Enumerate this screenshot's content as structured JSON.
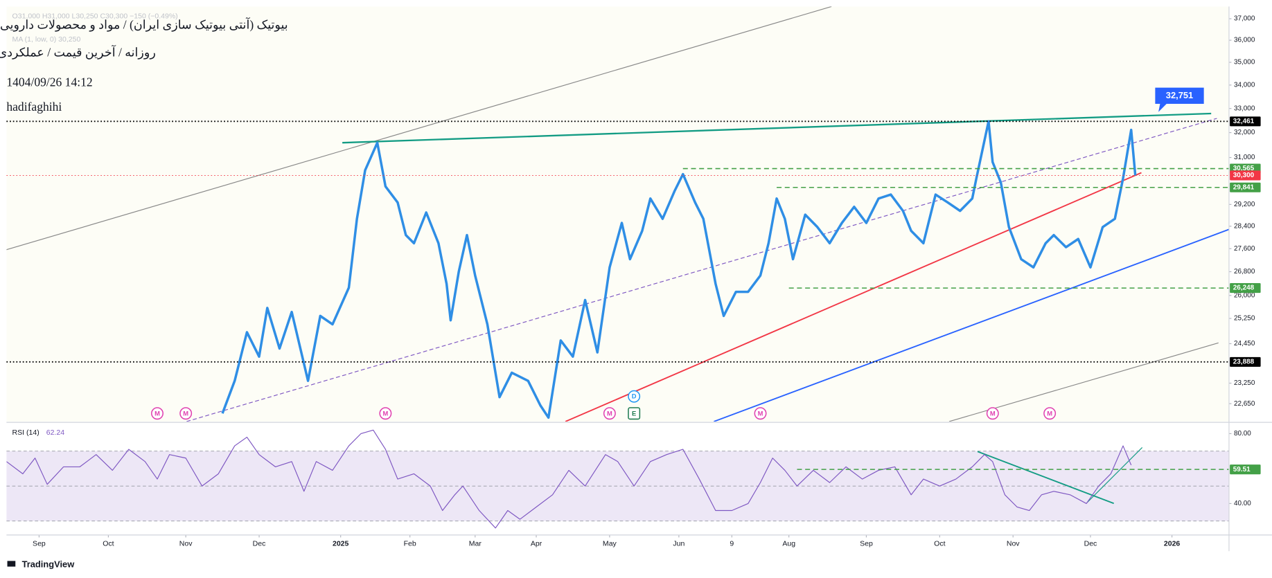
{
  "chart_data": [
    {
      "type": "line",
      "title": "بیوتیک (آنتی بیوتیک سازی ایران) / مواد و محصولات دارویی",
      "subtitle": "روزانه / آخرین قیمت / عملکردی",
      "date": "1404/09/26 14:12",
      "author": "hadifaghihi",
      "ohlc": "O31,000 H31,000 L30,250 C30,300 −150 (−0.49%)",
      "ma": "MA (1, low, 0) 30,250",
      "log": true,
      "xlim": [
        0,
        300
      ],
      "ylim": [
        22140,
        37580
      ],
      "yticks": [
        {
          "value": 37000,
          "label": "37,000"
        },
        {
          "value": 36000,
          "label": "36,000"
        },
        {
          "value": 35000,
          "label": "35,000"
        },
        {
          "value": 34000,
          "label": "34,000"
        },
        {
          "value": 33000,
          "label": "33,000"
        },
        {
          "value": 32000,
          "label": "32,000"
        },
        {
          "value": 31000,
          "label": "31,000"
        },
        {
          "value": 29200,
          "label": "29,200"
        },
        {
          "value": 28400,
          "label": "28,400"
        },
        {
          "value": 27600,
          "label": "27,600"
        },
        {
          "value": 26800,
          "label": "26,800"
        },
        {
          "value": 26000,
          "label": "26,000"
        },
        {
          "value": 25250,
          "label": "25,250"
        },
        {
          "value": 24450,
          "label": "24,450"
        },
        {
          "value": 23250,
          "label": "23,250"
        },
        {
          "value": 22650,
          "label": "22,650"
        }
      ],
      "series": [
        {
          "color": "#2f8ee5",
          "x": [
            53,
            56,
            59,
            62,
            64,
            67,
            70,
            74,
            77,
            80,
            84,
            86,
            88,
            91,
            93,
            96,
            98,
            100,
            103,
            106,
            108,
            109,
            111,
            113,
            115,
            118,
            121,
            124,
            128,
            131,
            133,
            136,
            139,
            142,
            145,
            148,
            151,
            153,
            156,
            158,
            161,
            164,
            166,
            169,
            171,
            174,
            176,
            179,
            182,
            185,
            187,
            189,
            191,
            193,
            196,
            199,
            202,
            205,
            208,
            211,
            214,
            217,
            220,
            222,
            225,
            228,
            231,
            234,
            237,
            238,
            241,
            242,
            244,
            246,
            249,
            252,
            255,
            257,
            260,
            263,
            266,
            269,
            272,
            274,
            276,
            277
          ],
          "values": [
            22370,
            23320,
            24810,
            24050,
            25590,
            24300,
            25460,
            23320,
            25330,
            25060,
            26260,
            28670,
            30500,
            31590,
            29880,
            29270,
            28080,
            27790,
            28900,
            27790,
            26390,
            25190,
            26810,
            28080,
            26670,
            25060,
            22840,
            23560,
            23320,
            22600,
            22250,
            24550,
            24050,
            25850,
            24180,
            26950,
            28520,
            27230,
            28230,
            29420,
            28670,
            29720,
            30350,
            29270,
            28670,
            26390,
            25330,
            26120,
            26120,
            26670,
            27790,
            29420,
            28670,
            27230,
            28820,
            28370,
            27790,
            28520,
            29110,
            28520,
            29420,
            29570,
            28960,
            28230,
            27790,
            29570,
            29270,
            28960,
            29420,
            30190,
            32460,
            30820,
            30030,
            28370,
            27230,
            26950,
            27790,
            28080,
            27650,
            27940,
            26950,
            28370,
            28670,
            30190,
            32110,
            30300
          ]
        }
      ],
      "levels": [
        {
          "value": 32461,
          "label": "32,461",
          "color": "#000000"
        },
        {
          "value": 30565,
          "label": "30,565",
          "color": "#43a047",
          "x0": 166
        },
        {
          "value": 30300,
          "label": "30,300",
          "color": "#f23645"
        },
        {
          "value": 29841,
          "label": "29,841",
          "color": "#43a047",
          "x0": 189
        },
        {
          "value": 26248,
          "label": "26,248",
          "color": "#43a047",
          "x0": 192
        },
        {
          "value": 23888,
          "label": "23,888",
          "color": "#000000"
        }
      ],
      "callout": {
        "value": 32751,
        "label": "32,751"
      },
      "events": [
        {
          "x": 37,
          "label": "M",
          "color": "#e040b0"
        },
        {
          "x": 44,
          "label": "M",
          "color": "#e040b0"
        },
        {
          "x": 93,
          "label": "M",
          "color": "#e040b0"
        },
        {
          "x": 148,
          "label": "M",
          "color": "#e040b0"
        },
        {
          "x": 154,
          "label": "E",
          "color": "#1e7b4f"
        },
        {
          "x": 154,
          "label": "D",
          "color": "#2196f3"
        },
        {
          "x": 185,
          "label": "M",
          "color": "#e040b0"
        },
        {
          "x": 242,
          "label": "M",
          "color": "#e040b0"
        },
        {
          "x": 256,
          "label": "M",
          "color": "#e040b0"
        }
      ]
    },
    {
      "type": "line",
      "title": "RSI (14)",
      "last": 62.24,
      "xlim": [
        0,
        300
      ],
      "ylim": [
        22,
        86
      ],
      "yticks": [
        {
          "value": 80,
          "label": "80.00"
        },
        {
          "value": 40,
          "label": "40.00"
        }
      ],
      "hlines": [
        70,
        50,
        30
      ],
      "band": [
        30,
        70
      ],
      "band_color": "#ede7f6",
      "series": [
        {
          "color": "#7e57c2",
          "x": [
            0,
            4,
            7,
            10,
            14,
            18,
            22,
            26,
            30,
            34,
            37,
            40,
            44,
            48,
            52,
            56,
            59,
            62,
            66,
            70,
            73,
            76,
            80,
            84,
            87,
            90,
            93,
            96,
            100,
            104,
            107,
            110,
            112,
            116,
            120,
            123,
            126,
            130,
            134,
            138,
            142,
            147,
            150,
            154,
            158,
            162,
            166,
            170,
            174,
            178,
            182,
            185,
            188,
            191,
            194,
            198,
            202,
            206,
            210,
            214,
            218,
            222,
            225,
            229,
            233,
            237,
            240,
            242,
            245,
            248,
            251,
            254,
            257,
            261,
            265,
            268,
            271,
            274,
            276
          ],
          "values": [
            64,
            57,
            66,
            51,
            61,
            61,
            68,
            59,
            71,
            64,
            54,
            68,
            66,
            50,
            57,
            73,
            78,
            68,
            61,
            64,
            47,
            64,
            59,
            73,
            80,
            82,
            71,
            54,
            57,
            50,
            36,
            45,
            50,
            36,
            26,
            36,
            31,
            38,
            45,
            59,
            50,
            68,
            64,
            50,
            64,
            68,
            71,
            54,
            36,
            36,
            40,
            52,
            66,
            59,
            50,
            59,
            52,
            61,
            54,
            59,
            61,
            45,
            54,
            50,
            54,
            61,
            68,
            64,
            45,
            38,
            36,
            45,
            47,
            45,
            40,
            50,
            57,
            73,
            62
          ]
        }
      ],
      "levels": [
        {
          "value": 59.51,
          "label": "59.51",
          "color": "#43a047",
          "x0": 194
        }
      ],
      "xticks": [
        {
          "value": 8,
          "label": "Sep"
        },
        {
          "value": 25,
          "label": "Oct"
        },
        {
          "value": 44,
          "label": "Nov"
        },
        {
          "value": 62,
          "label": "Dec"
        },
        {
          "value": 82,
          "label": "2025"
        },
        {
          "value": 99,
          "label": "Feb"
        },
        {
          "value": 115,
          "label": "Mar"
        },
        {
          "value": 130,
          "label": "Apr"
        },
        {
          "value": 148,
          "label": "May"
        },
        {
          "value": 165,
          "label": "Jun"
        },
        {
          "value": 178,
          "label": "9"
        },
        {
          "value": 192,
          "label": "Aug"
        },
        {
          "value": 211,
          "label": "Sep"
        },
        {
          "value": 229,
          "label": "Oct"
        },
        {
          "value": 247,
          "label": "Nov"
        },
        {
          "value": 266,
          "label": "Dec"
        },
        {
          "value": 286,
          "label": "2026"
        }
      ]
    }
  ],
  "brand": "TradingView"
}
